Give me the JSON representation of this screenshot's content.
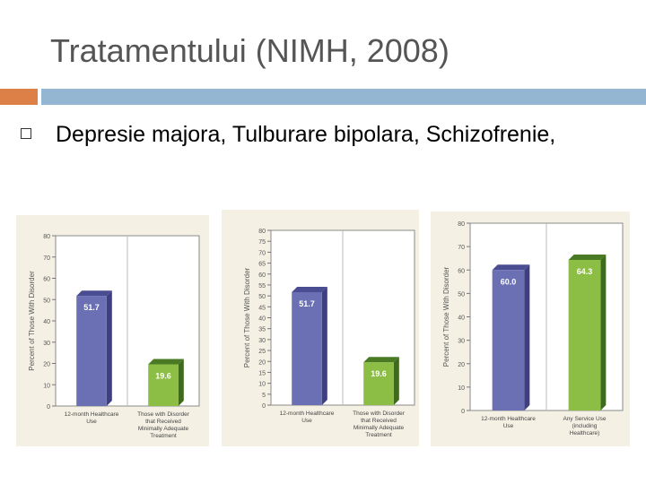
{
  "slide": {
    "title": "Tratamentului (NIMH, 2008)",
    "bullet": "Depresie majora, Tulburare bipolara, Schizofrenie,"
  },
  "colors": {
    "accent_orange": "#dd8047",
    "accent_blue": "#94b6d2",
    "bar_blue": "#6b6fb4",
    "bar_green": "#8cbd44"
  },
  "chart_data": [
    {
      "type": "bar",
      "ylabel": "Percent of Those With Disorder",
      "ylim": [
        0,
        80
      ],
      "yticks": [
        0,
        10,
        20,
        30,
        40,
        50,
        60,
        70,
        80
      ],
      "categories": [
        "12-month Healthcare Use",
        "Those with Disorder that Received Minimally Adequate Treatment"
      ],
      "values": [
        51.7,
        19.6
      ],
      "labels": [
        "51.7",
        "19.6"
      ]
    },
    {
      "type": "bar",
      "ylabel": "Percent of Those With Disorder",
      "ylim": [
        0,
        80
      ],
      "yticks": [
        0,
        5,
        10,
        15,
        20,
        25,
        30,
        35,
        40,
        45,
        50,
        55,
        60,
        65,
        70,
        75,
        80
      ],
      "categories": [
        "12-month Healthcare Use",
        "Those with Disorder that Received Minimally Adequate Treatment"
      ],
      "values": [
        51.7,
        19.6
      ],
      "labels": [
        "51.7",
        "19.6"
      ]
    },
    {
      "type": "bar",
      "ylabel": "Percent of Those With Disorder",
      "ylim": [
        0,
        80
      ],
      "yticks": [
        0,
        10,
        20,
        30,
        40,
        50,
        60,
        70,
        80
      ],
      "categories": [
        "12-month Healthcare Use",
        "Any Service Use (including Healthcare)"
      ],
      "values": [
        60.0,
        64.3
      ],
      "labels": [
        "60.0",
        "64.3"
      ]
    }
  ]
}
